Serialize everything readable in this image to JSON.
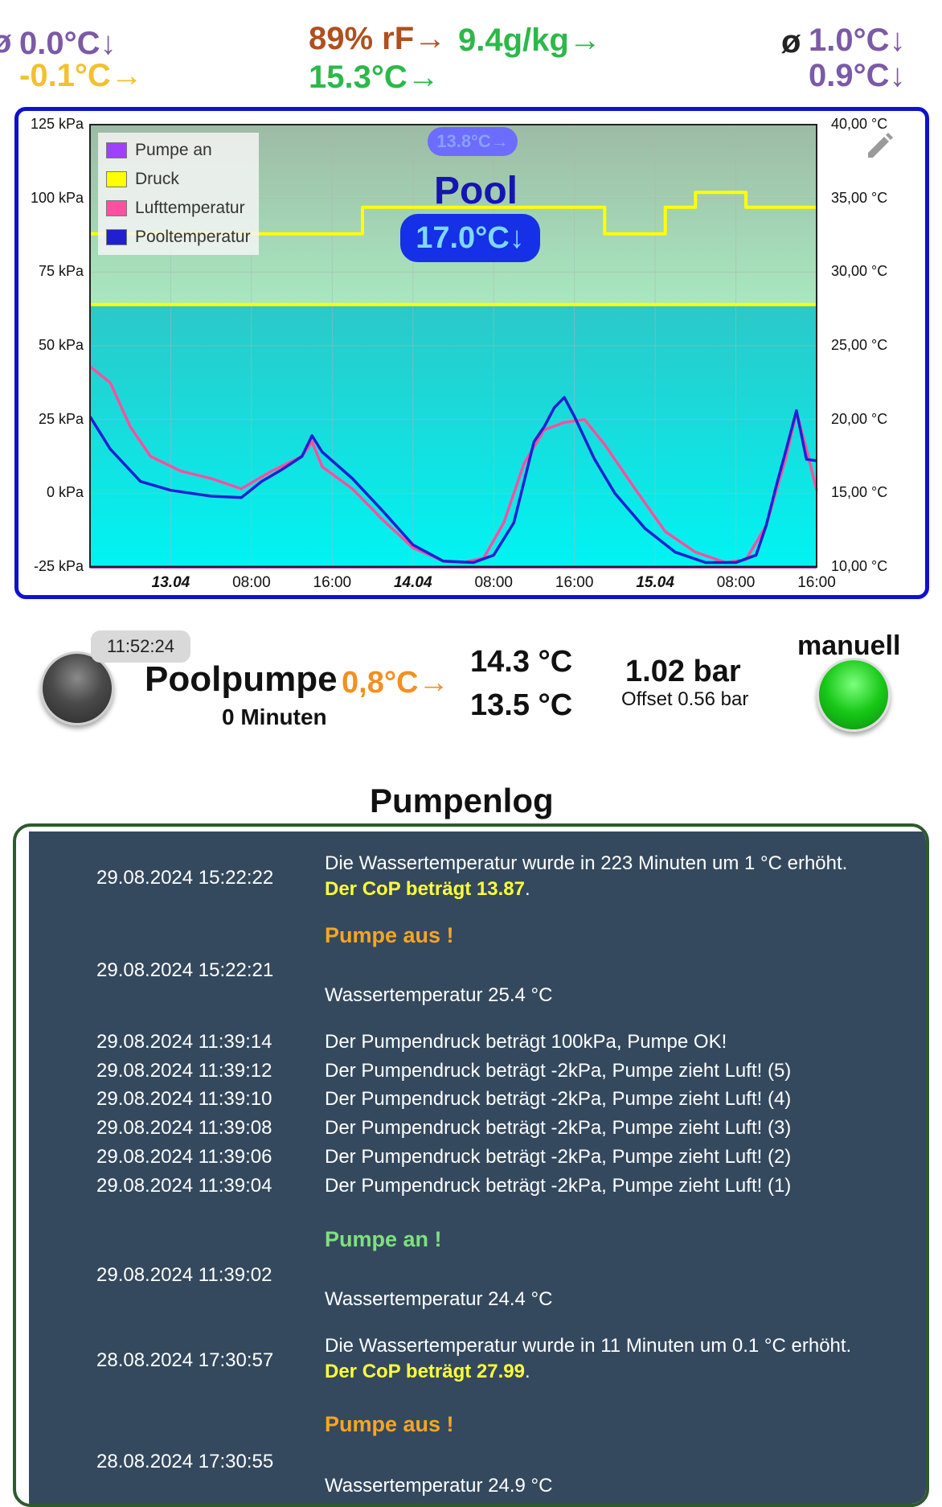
{
  "header": {
    "left_avg_symbol": "ø",
    "left_top": "0.0°C↓",
    "left_bottom": "-0.1°C→",
    "humidity": "89% rF→",
    "abs_humidity": "9.4g/kg→",
    "center_temp": "15.3°C→",
    "right_avg_symbol": "ø",
    "right_top": "1.0°C↓",
    "right_bottom": "0.9°C↓"
  },
  "chart_overlay": {
    "small_badge": "13.8°C→",
    "title": "Pool",
    "big_badge": "17.0°C↓",
    "edit_icon": "pencil-icon"
  },
  "chart_data": {
    "type": "line",
    "legend": [
      "Pumpe an",
      "Druck",
      "Lufttemperatur",
      "Pooltemperatur"
    ],
    "colors": {
      "Pumpe an": "#a040ff",
      "Druck": "#ffff00",
      "Lufttemperatur": "#ff4fa0",
      "Pooltemperatur": "#2020d0"
    },
    "left_axis": {
      "unit": "kPa",
      "ticks": [
        "125 kPa",
        "100 kPa",
        "75 kPa",
        "50 kPa",
        "25 kPa",
        "0 kPa",
        "-25 kPa"
      ],
      "range": [
        -25,
        125
      ]
    },
    "right_axis": {
      "unit": "°C",
      "ticks": [
        "40,00 °C",
        "35,00 °C",
        "30,00 °C",
        "25,00 °C",
        "20,00 °C",
        "15,00 °C",
        "10,00 °C"
      ],
      "range": [
        10,
        40
      ]
    },
    "x_ticks": [
      {
        "label": "13.04",
        "bold": true
      },
      {
        "label": "08:00",
        "bold": false
      },
      {
        "label": "16:00",
        "bold": false
      },
      {
        "label": "14.04",
        "bold": true
      },
      {
        "label": "08:00",
        "bold": false
      },
      {
        "label": "16:00",
        "bold": false
      },
      {
        "label": "15.04",
        "bold": true
      },
      {
        "label": "08:00",
        "bold": false
      },
      {
        "label": "16:00",
        "bold": false
      }
    ],
    "x_range_hours": [
      0,
      72
    ],
    "series": [
      {
        "name": "Druck",
        "axis": "left",
        "points": [
          [
            0,
            88
          ],
          [
            27,
            88
          ],
          [
            27,
            97
          ],
          [
            51,
            97
          ],
          [
            51,
            88
          ],
          [
            57,
            88
          ],
          [
            57,
            97
          ],
          [
            60,
            97
          ],
          [
            60,
            102
          ],
          [
            65,
            102
          ],
          [
            65,
            97
          ],
          [
            72,
            97
          ]
        ]
      },
      {
        "name": "Druck",
        "axis": "left",
        "points": [
          [
            0,
            64
          ],
          [
            72,
            64
          ]
        ]
      },
      {
        "name": "Pumpe an",
        "axis": "left",
        "points": [
          [
            0,
            -25
          ],
          [
            72,
            -25
          ]
        ]
      },
      {
        "name": "Lufttemperatur",
        "axis": "right",
        "points": [
          [
            0,
            23.6
          ],
          [
            2,
            22.5
          ],
          [
            4,
            19.5
          ],
          [
            6,
            17.5
          ],
          [
            9,
            16.5
          ],
          [
            12,
            16
          ],
          [
            15,
            15.3
          ],
          [
            18,
            16.5
          ],
          [
            21,
            17.5
          ],
          [
            22,
            18.5
          ],
          [
            23,
            16.8
          ],
          [
            26,
            15.3
          ],
          [
            29,
            13.2
          ],
          [
            32,
            11.3
          ],
          [
            35,
            10.4
          ],
          [
            37,
            10.3
          ],
          [
            39,
            10.6
          ],
          [
            41,
            13
          ],
          [
            43,
            17
          ],
          [
            45,
            19.3
          ],
          [
            47,
            19.8
          ],
          [
            49,
            20
          ],
          [
            51,
            18.3
          ],
          [
            54,
            15.3
          ],
          [
            57,
            12.4
          ],
          [
            60,
            11
          ],
          [
            63,
            10.3
          ],
          [
            65,
            10.5
          ],
          [
            67,
            12.8
          ],
          [
            69,
            17.5
          ],
          [
            70,
            20.5
          ],
          [
            71,
            18
          ],
          [
            72,
            15.2
          ]
        ]
      },
      {
        "name": "Pooltemperatur",
        "axis": "right",
        "points": [
          [
            0,
            20.2
          ],
          [
            2,
            18
          ],
          [
            5,
            15.8
          ],
          [
            8,
            15.2
          ],
          [
            12,
            14.8
          ],
          [
            15,
            14.7
          ],
          [
            17,
            15.8
          ],
          [
            19,
            16.6
          ],
          [
            21,
            17.5
          ],
          [
            22,
            18.9
          ],
          [
            23,
            17.8
          ],
          [
            26,
            16
          ],
          [
            29,
            13.8
          ],
          [
            32,
            11.5
          ],
          [
            35,
            10.4
          ],
          [
            38,
            10.3
          ],
          [
            40,
            10.8
          ],
          [
            42,
            13
          ],
          [
            44,
            18.5
          ],
          [
            45,
            19.5
          ],
          [
            46,
            20.8
          ],
          [
            47,
            21.5
          ],
          [
            48,
            20.2
          ],
          [
            50,
            17.3
          ],
          [
            52,
            15
          ],
          [
            55,
            12.6
          ],
          [
            58,
            11
          ],
          [
            61,
            10.3
          ],
          [
            64,
            10.3
          ],
          [
            66,
            10.8
          ],
          [
            67,
            12.8
          ],
          [
            68,
            15.5
          ],
          [
            69,
            18
          ],
          [
            70,
            20.6
          ],
          [
            71,
            17.3
          ],
          [
            72,
            17.2
          ]
        ]
      }
    ]
  },
  "status": {
    "time": "11:52:24",
    "pump_name": "Poolpumpe",
    "pump_delta": "0,8°C→",
    "pump_minutes": "0 Minuten",
    "temp1": "14.3 °C",
    "temp2": "13.5 °C",
    "pressure": "1.02 bar",
    "offset": "Offset 0.56 bar",
    "mode": "manuell"
  },
  "log": {
    "title": "Pumpenlog",
    "entries": [
      {
        "date": "29.08.2024 15:22:22",
        "line1": "Die Wassertemperatur wurde in 223 Minuten um 1 °C erhöht.",
        "cop": "Der CoP beträgt 13.87",
        "suffix": "."
      },
      {
        "date": "29.08.2024 15:22:21",
        "event": "Pumpe aus !",
        "line1": "Wassertemperatur 25.4 °C"
      },
      {
        "date": "29.08.2024 11:39:14",
        "line1": "Der Pumpendruck beträgt 100kPa, Pumpe OK!"
      },
      {
        "date": "29.08.2024 11:39:12",
        "line1": "Der Pumpendruck beträgt -2kPa, Pumpe zieht Luft! (5)"
      },
      {
        "date": "29.08.2024 11:39:10",
        "line1": "Der Pumpendruck beträgt -2kPa, Pumpe zieht Luft! (4)"
      },
      {
        "date": "29.08.2024 11:39:08",
        "line1": "Der Pumpendruck beträgt -2kPa, Pumpe zieht Luft! (3)"
      },
      {
        "date": "29.08.2024 11:39:06",
        "line1": "Der Pumpendruck beträgt -2kPa, Pumpe zieht Luft! (2)"
      },
      {
        "date": "29.08.2024 11:39:04",
        "line1": "Der Pumpendruck beträgt -2kPa, Pumpe zieht Luft! (1)"
      },
      {
        "date": "29.08.2024 11:39:02",
        "event": "Pumpe an !",
        "line1": "Wassertemperatur 24.4 °C"
      },
      {
        "date": "28.08.2024 17:30:57",
        "line1": "Die Wassertemperatur wurde in 11 Minuten um 0.1 °C erhöht.",
        "cop": "Der CoP beträgt 27.99",
        "suffix": "."
      },
      {
        "date": "28.08.2024 17:30:55",
        "event": "Pumpe aus !",
        "line1": "Wassertemperatur 24.9 °C"
      }
    ]
  }
}
